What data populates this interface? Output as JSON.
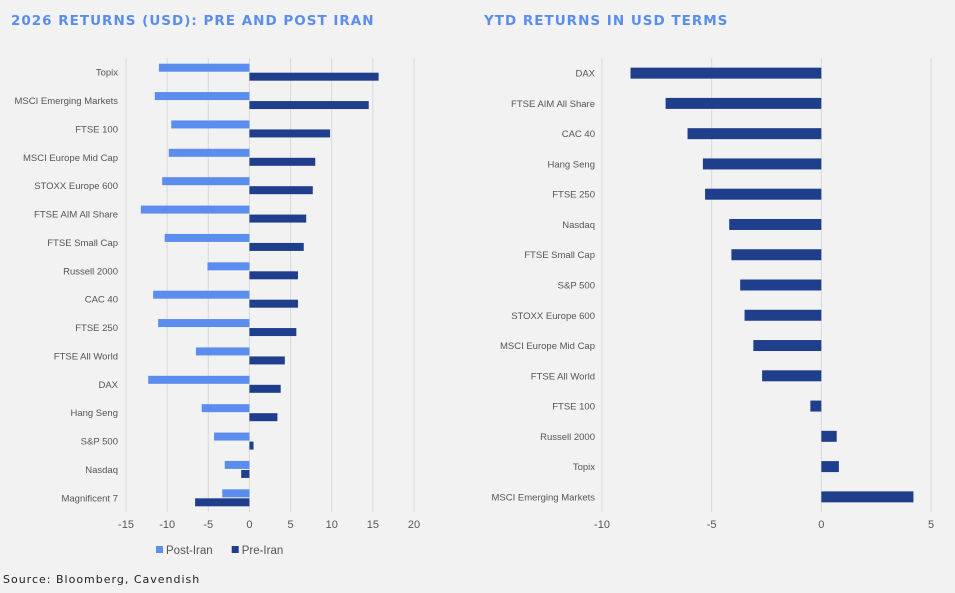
{
  "source": "Source: Bloomberg, Cavendish",
  "colors": {
    "post_iran": "#5b8def",
    "pre_iran": "#1f3f8c",
    "title": "#5b8def",
    "grid": "#d9d9d9"
  },
  "chart_data": [
    {
      "type": "bar",
      "orientation": "horizontal",
      "title": "2026 RETURNS (USD): PRE AND POST IRAN",
      "categories": [
        "Topix",
        "MSCI Emerging Markets",
        "FTSE 100",
        "MSCI Europe Mid Cap",
        "STOXX Europe 600",
        "FTSE AIM All Share",
        "FTSE Small Cap",
        "Russell 2000",
        "CAC 40",
        "FTSE 250",
        "FTSE All World",
        "DAX",
        "Hang Seng",
        "S&P 500",
        "Nasdaq",
        "Magnificent 7"
      ],
      "series": [
        {
          "name": "Post-Iran",
          "color": "#5b8def",
          "values": [
            -11,
            -11.5,
            -9.5,
            -9.8,
            -10.6,
            -13.2,
            -10.3,
            -5.1,
            -11.7,
            -11.1,
            -6.5,
            -12.3,
            -5.8,
            -4.3,
            -3,
            -3.3
          ]
        },
        {
          "name": "Pre-Iran",
          "color": "#1f3f8c",
          "values": [
            15.7,
            14.5,
            9.8,
            8,
            7.7,
            6.9,
            6.6,
            5.9,
            5.9,
            5.7,
            4.3,
            3.8,
            3.4,
            0.5,
            -1,
            -6.6
          ]
        }
      ],
      "xlim": [
        -15,
        20
      ],
      "xticks": [
        -15,
        -10,
        -5,
        0,
        5,
        10,
        15,
        20
      ],
      "legend": [
        "Post-Iran",
        "Pre-Iran"
      ],
      "legend_position": "bottom-center",
      "grid": true
    },
    {
      "type": "bar",
      "orientation": "horizontal",
      "title": "YTD RETURNS IN USD TERMS",
      "categories": [
        "DAX",
        "FTSE AIM All Share",
        "CAC 40",
        "Hang Seng",
        "FTSE 250",
        "Nasdaq",
        "FTSE Small Cap",
        "S&P 500",
        "STOXX Europe 600",
        "MSCI Europe Mid Cap",
        "FTSE All World",
        "FTSE 100",
        "Russell 2000",
        "Topix",
        "MSCI Emerging Markets"
      ],
      "series": [
        {
          "name": "YTD Return",
          "color": "#1f3f8c",
          "values": [
            -8.7,
            -7.1,
            -6.1,
            -5.4,
            -5.3,
            -4.2,
            -4.1,
            -3.7,
            -3.5,
            -3.1,
            -2.7,
            -0.5,
            0.7,
            0.8,
            4.2
          ]
        }
      ],
      "xlim": [
        -10,
        5
      ],
      "xticks": [
        -10,
        -5,
        0,
        5
      ],
      "grid": true
    }
  ]
}
